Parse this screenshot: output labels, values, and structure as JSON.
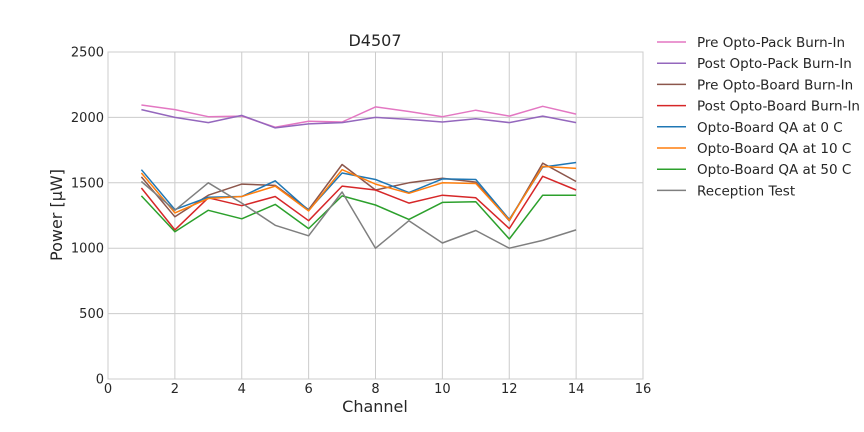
{
  "chart_data": {
    "type": "line",
    "title": "D4507",
    "xlabel": "Channel",
    "ylabel": "Power [μW]",
    "xlim": [
      0,
      16
    ],
    "ylim": [
      0,
      2500
    ],
    "xticks": [
      0,
      2,
      4,
      6,
      8,
      10,
      12,
      14,
      16
    ],
    "yticks": [
      0,
      500,
      1000,
      1500,
      2000,
      2500
    ],
    "grid": true,
    "legend_position": "outside-right",
    "x": [
      1,
      2,
      3,
      4,
      5,
      6,
      7,
      8,
      9,
      10,
      11,
      12,
      13,
      14
    ],
    "series": [
      {
        "name": "Pre Opto-Pack Burn-In",
        "color": "#e377c2",
        "values": [
          2095,
          2060,
          2005,
          2010,
          1925,
          1970,
          1965,
          2080,
          2045,
          2005,
          2055,
          2010,
          2085,
          2025
        ]
      },
      {
        "name": "Post Opto-Pack Burn-In",
        "color": "#9467bd",
        "values": [
          2060,
          2000,
          1960,
          2015,
          1920,
          1950,
          1960,
          2000,
          1985,
          1965,
          1990,
          1960,
          2010,
          1960
        ]
      },
      {
        "name": "Pre Opto-Board Burn-In",
        "color": "#8c564b",
        "values": [
          1545,
          1240,
          1405,
          1490,
          1480,
          1295,
          1640,
          1445,
          1500,
          1535,
          1505,
          1210,
          1650,
          1510
        ]
      },
      {
        "name": "Post Opto-Board Burn-In",
        "color": "#d62728",
        "values": [
          1460,
          1140,
          1385,
          1325,
          1395,
          1210,
          1475,
          1445,
          1345,
          1405,
          1385,
          1150,
          1550,
          1445
        ]
      },
      {
        "name": "Opto-Board QA at 0 C",
        "color": "#1f77b4",
        "values": [
          1600,
          1295,
          1390,
          1395,
          1515,
          1290,
          1575,
          1525,
          1425,
          1530,
          1525,
          1220,
          1620,
          1655
        ]
      },
      {
        "name": "Opto-Board QA at 10 C",
        "color": "#ff7f0e",
        "values": [
          1575,
          1270,
          1380,
          1395,
          1475,
          1285,
          1600,
          1490,
          1420,
          1500,
          1495,
          1215,
          1625,
          1610
        ]
      },
      {
        "name": "Opto-Board QA at 50 C",
        "color": "#2ca02c",
        "values": [
          1400,
          1125,
          1290,
          1225,
          1335,
          1150,
          1400,
          1330,
          1220,
          1350,
          1355,
          1070,
          1405,
          1405
        ]
      },
      {
        "name": "Reception Test",
        "color": "#7f7f7f",
        "values": [
          1510,
          1290,
          1500,
          1345,
          1175,
          1095,
          1430,
          1000,
          1210,
          1040,
          1135,
          1000,
          1060,
          1140
        ]
      }
    ]
  }
}
